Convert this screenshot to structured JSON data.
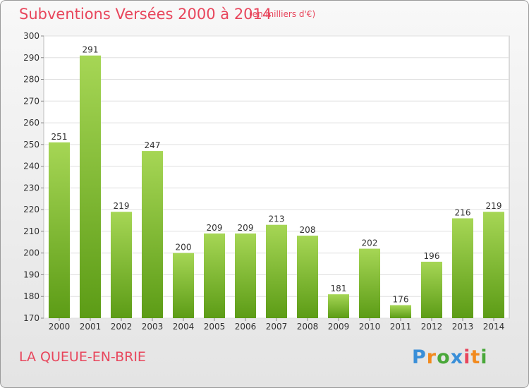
{
  "title": "Subventions Versées 2000 à 2014",
  "subtitle": "(en milliers d'€)",
  "commune": "LA QUEUE-EN-BRIE",
  "logo": {
    "text": "Proxiti",
    "colors": [
      "#3a8fd8",
      "#f28a1e",
      "#4aa83a",
      "#3a8fd8",
      "#e8465c",
      "#f28a1e",
      "#4aa83a"
    ]
  },
  "colors": {
    "bar_top": "#a6d655",
    "bar_bottom": "#5c9c16",
    "title": "#e8465c"
  },
  "chart_data": {
    "type": "bar",
    "categories": [
      "2000",
      "2001",
      "2002",
      "2003",
      "2004",
      "2005",
      "2006",
      "2007",
      "2008",
      "2009",
      "2010",
      "2011",
      "2012",
      "2013",
      "2014"
    ],
    "values": [
      251,
      291,
      219,
      247,
      200,
      209,
      209,
      213,
      208,
      181,
      202,
      176,
      196,
      216,
      219
    ],
    "title": "Subventions Versées 2000 à 2014",
    "ylim": [
      170,
      300
    ],
    "yticks": [
      170,
      180,
      190,
      200,
      210,
      220,
      230,
      240,
      250,
      260,
      270,
      280,
      290,
      300
    ],
    "grid": true
  }
}
